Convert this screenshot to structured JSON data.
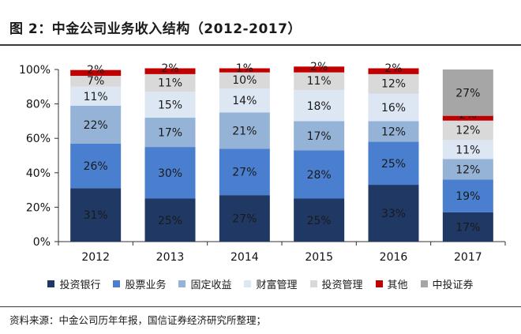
{
  "figure": {
    "title": "图 2：中金公司业务收入结构（2012-2017）",
    "source": "资料来源：中金公司历年年报，国信证券经济研究所整理；"
  },
  "chart_data": {
    "type": "bar",
    "stacked": true,
    "categories": [
      "2012",
      "2013",
      "2014",
      "2015",
      "2016",
      "2017"
    ],
    "ylim": [
      0,
      100
    ],
    "yticks": [
      "0%",
      "20%",
      "40%",
      "60%",
      "80%",
      "100%"
    ],
    "grid": false,
    "legend_position": "bottom",
    "series": [
      {
        "name": "投资银行",
        "color": "#1f3864",
        "values": [
          31,
          25,
          27,
          25,
          33,
          17
        ]
      },
      {
        "name": "股票业务",
        "color": "#4a7fcf",
        "values": [
          26,
          30,
          27,
          28,
          25,
          19
        ]
      },
      {
        "name": "固定收益",
        "color": "#95b3d7",
        "values": [
          22,
          17,
          21,
          17,
          12,
          12
        ]
      },
      {
        "name": "财富管理",
        "color": "#dde6f3",
        "values": [
          11,
          15,
          14,
          18,
          16,
          11
        ]
      },
      {
        "name": "投资管理",
        "color": "#d9d9d9",
        "values": [
          7,
          11,
          10,
          11,
          12,
          12
        ]
      },
      {
        "name": "其他",
        "color": "#c00000",
        "values": [
          2,
          2,
          1,
          2,
          2,
          2
        ]
      },
      {
        "name": "中投证券",
        "color": "#a6a6a6",
        "values": [
          null,
          null,
          null,
          null,
          null,
          27
        ]
      }
    ],
    "data_labels": [
      [
        "31%",
        "25%",
        "27%",
        "25%",
        "33%",
        "17%"
      ],
      [
        "26%",
        "30%",
        "27%",
        "28%",
        "25%",
        "19%"
      ],
      [
        "22%",
        "17%",
        "21%",
        "17%",
        "12%",
        "12%"
      ],
      [
        "11%",
        "15%",
        "14%",
        "18%",
        "16%",
        "11%"
      ],
      [
        "7%",
        "11%",
        "10%",
        "11%",
        "12%",
        "12%"
      ],
      [
        "2%",
        "2%",
        "1%",
        "2%",
        "2%",
        "2%"
      ],
      [
        null,
        null,
        null,
        null,
        null,
        "27%"
      ]
    ]
  }
}
